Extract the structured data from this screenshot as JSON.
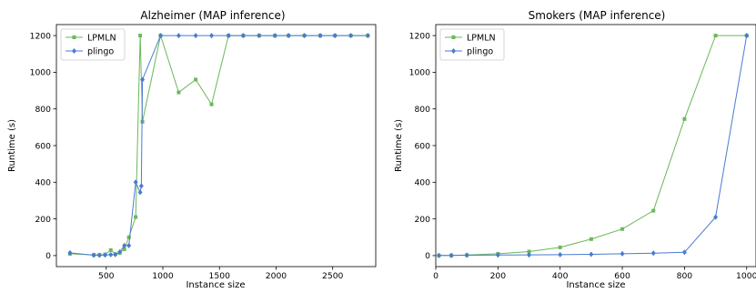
{
  "chart_data": [
    {
      "type": "line",
      "title": "Alzheimer (MAP inference)",
      "xlabel": "Instance size",
      "ylabel": "Runtime (s)",
      "xlim": [
        60,
        2880
      ],
      "ylim": [
        -60,
        1260
      ],
      "xticks": [
        500,
        1000,
        1500,
        2000,
        2500
      ],
      "yticks": [
        0,
        200,
        400,
        600,
        800,
        1000,
        1200
      ],
      "grid": false,
      "legend": "top-left",
      "series": [
        {
          "name": "LPMLN",
          "color": "#6ab85a",
          "marker": "square",
          "points": [
            [
              180,
              10
            ],
            [
              390,
              4
            ],
            [
              440,
              4
            ],
            [
              490,
              6
            ],
            [
              540,
              30
            ],
            [
              580,
              8
            ],
            [
              620,
              15
            ],
            [
              660,
              35
            ],
            [
              700,
              100
            ],
            [
              760,
              210
            ],
            [
              800,
              1200
            ],
            [
              820,
              730
            ],
            [
              980,
              1200
            ],
            [
              1140,
              890
            ],
            [
              1290,
              960
            ],
            [
              1430,
              825
            ],
            [
              1580,
              1200
            ],
            [
              1710,
              1200
            ],
            [
              1850,
              1200
            ],
            [
              1990,
              1200
            ],
            [
              2110,
              1200
            ],
            [
              2250,
              1200
            ],
            [
              2390,
              1200
            ],
            [
              2520,
              1200
            ],
            [
              2660,
              1200
            ],
            [
              2810,
              1200
            ]
          ]
        },
        {
          "name": "plingo",
          "color": "#4a7bd0",
          "marker": "diamond",
          "points": [
            [
              180,
              15
            ],
            [
              390,
              2
            ],
            [
              440,
              2
            ],
            [
              490,
              3
            ],
            [
              540,
              5
            ],
            [
              580,
              6
            ],
            [
              620,
              20
            ],
            [
              660,
              55
            ],
            [
              700,
              55
            ],
            [
              760,
              400
            ],
            [
              800,
              345
            ],
            [
              810,
              380
            ],
            [
              820,
              960
            ],
            [
              980,
              1200
            ],
            [
              1140,
              1200
            ],
            [
              1290,
              1200
            ],
            [
              1430,
              1200
            ],
            [
              1580,
              1200
            ],
            [
              1710,
              1200
            ],
            [
              1850,
              1200
            ],
            [
              1990,
              1200
            ],
            [
              2110,
              1200
            ],
            [
              2250,
              1200
            ],
            [
              2390,
              1200
            ],
            [
              2520,
              1200
            ],
            [
              2660,
              1200
            ],
            [
              2810,
              1200
            ]
          ]
        }
      ]
    },
    {
      "type": "line",
      "title": "Smokers (MAP inference)",
      "xlabel": "Instance size",
      "ylabel": "Runtime (s)",
      "xlim": [
        0,
        1030
      ],
      "ylim": [
        -60,
        1260
      ],
      "xticks": [
        0,
        200,
        400,
        600,
        800,
        1000
      ],
      "yticks": [
        0,
        200,
        400,
        600,
        800,
        1000,
        1200
      ],
      "grid": false,
      "legend": "top-left",
      "series": [
        {
          "name": "LPMLN",
          "color": "#6ab85a",
          "marker": "square",
          "points": [
            [
              10,
              0.5
            ],
            [
              50,
              1
            ],
            [
              100,
              3
            ],
            [
              200,
              10
            ],
            [
              300,
              22
            ],
            [
              400,
              45
            ],
            [
              500,
              90
            ],
            [
              600,
              145
            ],
            [
              700,
              245
            ],
            [
              800,
              745
            ],
            [
              900,
              1200
            ],
            [
              1000,
              1200
            ]
          ]
        },
        {
          "name": "plingo",
          "color": "#4a7bd0",
          "marker": "diamond",
          "points": [
            [
              10,
              0.5
            ],
            [
              50,
              1
            ],
            [
              100,
              2
            ],
            [
              200,
              3
            ],
            [
              300,
              4
            ],
            [
              400,
              5
            ],
            [
              500,
              7
            ],
            [
              600,
              10
            ],
            [
              700,
              13
            ],
            [
              800,
              18
            ],
            [
              900,
              210
            ],
            [
              1000,
              1200
            ]
          ]
        }
      ]
    }
  ]
}
